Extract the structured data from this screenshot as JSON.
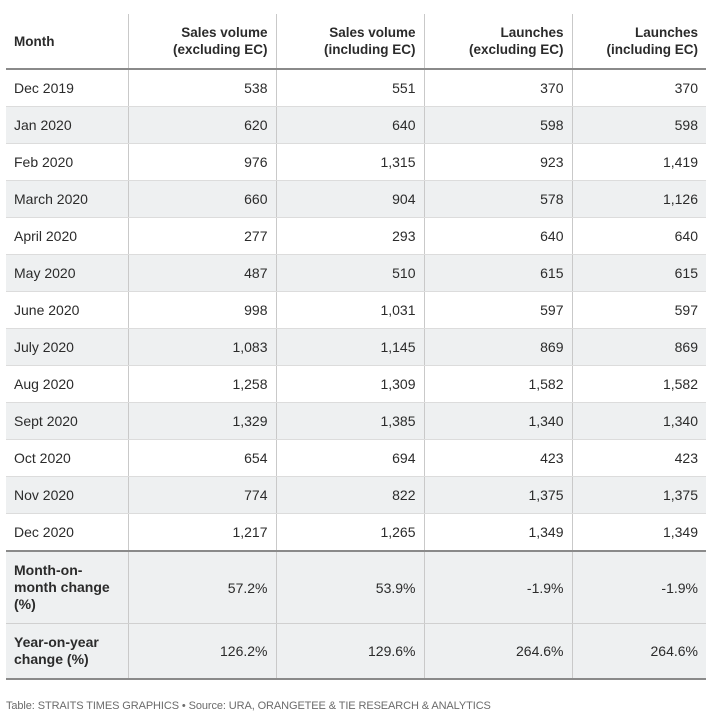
{
  "chart_data": {
    "type": "table",
    "columns": [
      "Month",
      "Sales volume (excluding EC)",
      "Sales volume (including EC)",
      "Launches (excluding EC)",
      "Launches (including EC)"
    ],
    "headers": [
      [
        "Month"
      ],
      [
        "Sales volume",
        "(excluding EC)"
      ],
      [
        "Sales volume",
        "(including EC)"
      ],
      [
        "Launches",
        "(excluding EC)"
      ],
      [
        "Launches",
        "(including EC)"
      ]
    ],
    "rows": [
      [
        "Dec 2019",
        "538",
        "551",
        "370",
        "370"
      ],
      [
        "Jan 2020",
        "620",
        "640",
        "598",
        "598"
      ],
      [
        "Feb 2020",
        "976",
        "1,315",
        "923",
        "1,419"
      ],
      [
        "March 2020",
        "660",
        "904",
        "578",
        "1,126"
      ],
      [
        "April 2020",
        "277",
        "293",
        "640",
        "640"
      ],
      [
        "May 2020",
        "487",
        "510",
        "615",
        "615"
      ],
      [
        "June 2020",
        "998",
        "1,031",
        "597",
        "597"
      ],
      [
        "July 2020",
        "1,083",
        "1,145",
        "869",
        "869"
      ],
      [
        "Aug 2020",
        "1,258",
        "1,309",
        "1,582",
        "1,582"
      ],
      [
        "Sept 2020",
        "1,329",
        "1,385",
        "1,340",
        "1,340"
      ],
      [
        "Oct 2020",
        "654",
        "694",
        "423",
        "423"
      ],
      [
        "Nov 2020",
        "774",
        "822",
        "1,375",
        "1,375"
      ],
      [
        "Dec 2020",
        "1,217",
        "1,265",
        "1,349",
        "1,349"
      ]
    ],
    "summary_rows": [
      {
        "label_lines": [
          "Month-on-",
          "month change",
          "(%)"
        ],
        "values": [
          "57.2%",
          "53.9%",
          "-1.9%",
          "-1.9%"
        ]
      },
      {
        "label_lines": [
          "Year-on-year",
          "change (%)"
        ],
        "values": [
          "126.2%",
          "129.6%",
          "264.6%",
          "264.6%"
        ]
      }
    ],
    "source": "Table: STRAITS TIMES GRAPHICS • Source: URA, ORANGETEE & TIE RESEARCH & ANALYTICS"
  },
  "colors": {
    "row_stripe": "#eef0f1",
    "rule_heavy": "#8a8a8a",
    "rule_light": "#dcdcdc",
    "text": "#2b2b2b",
    "source_text": "#6b6b6b"
  }
}
